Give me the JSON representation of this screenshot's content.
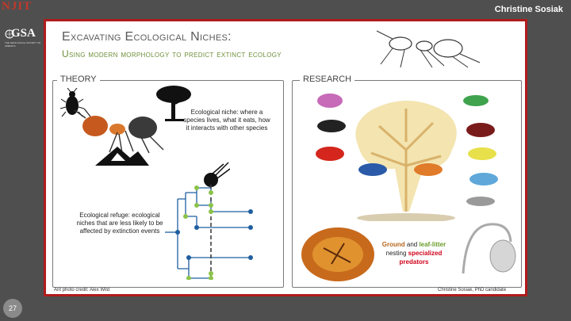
{
  "header": {
    "logo_njit": "NJIT",
    "logo_gsa": "GSA",
    "logo_gsa_sub": "THE GEOLOGICAL SOCIETY OF AMERICA",
    "author": "Christine Sosiak"
  },
  "slide": {
    "title_line1": "Excavating Ecological Niches:",
    "title_line2": "Using modern morphology to predict extinct ecology",
    "theory": {
      "label": "THEORY",
      "niche_text": "Ecological niche: where a species lives, what it eats, how it interacts with other species",
      "refuge_text": "Ecological refuge: ecological niches that are less likely to be affected by extinction events"
    },
    "research": {
      "label": "RESEARCH",
      "caption_ground": "Ground",
      "caption_and": " and ",
      "caption_leaf": "leaf-litter",
      "caption_nesting": "nesting ",
      "caption_specialized": "specialized",
      "caption_predators": "predators"
    },
    "photo_credit": "Ant photo credit: Alex Wild",
    "footer_author": "Christine Sosiak, PhD candidate"
  },
  "page_number": "27",
  "colors": {
    "frame": "#b01c1c",
    "title_gray": "#5a5a5a",
    "title_green": "#6f8f3a",
    "tree_blue": "#1f5fa0",
    "tree_green": "#8bc34a",
    "ground_brown": "#b5651d",
    "leaf_green": "#6a9c2a",
    "predator_red": "#d0021b"
  }
}
